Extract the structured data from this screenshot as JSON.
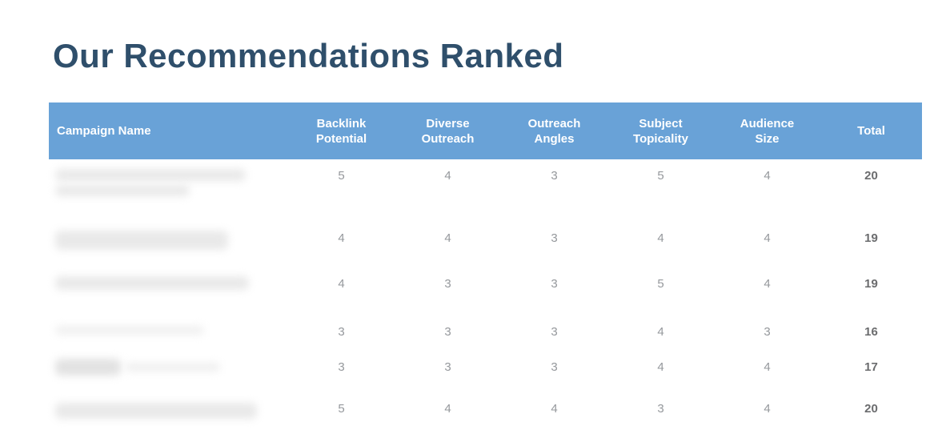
{
  "title": "Our Recommendations Ranked",
  "table": {
    "columns": [
      {
        "lines": [
          "Campaign Name"
        ]
      },
      {
        "lines": [
          "Backlink",
          "Potential"
        ]
      },
      {
        "lines": [
          "Diverse",
          "Outreach"
        ]
      },
      {
        "lines": [
          "Outreach",
          "Angles"
        ]
      },
      {
        "lines": [
          "Subject",
          "Topicality"
        ]
      },
      {
        "lines": [
          "Audience",
          "Size"
        ]
      },
      {
        "lines": [
          "Total"
        ]
      }
    ],
    "rows": [
      {
        "name_redacted": true,
        "scores": [
          5,
          4,
          3,
          5,
          4
        ],
        "total": 20
      },
      {
        "name_redacted": true,
        "scores": [
          4,
          4,
          3,
          4,
          4
        ],
        "total": 19
      },
      {
        "name_redacted": true,
        "scores": [
          4,
          3,
          3,
          5,
          4
        ],
        "total": 19
      },
      {
        "name_redacted": true,
        "scores": [
          3,
          3,
          3,
          4,
          3
        ],
        "total": 16
      },
      {
        "name_redacted": true,
        "scores": [
          3,
          3,
          3,
          4,
          4
        ],
        "total": 17
      },
      {
        "name_redacted": true,
        "scores": [
          5,
          4,
          4,
          3,
          4
        ],
        "total": 20
      }
    ]
  },
  "colors": {
    "header_bg": "#69a2d7",
    "title_text": "#2f4f6b",
    "score_text": "#95989c",
    "total_text": "#6b6c6e"
  }
}
